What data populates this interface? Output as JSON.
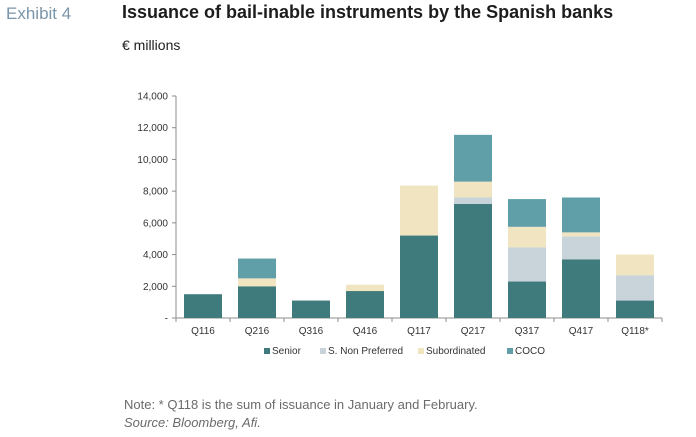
{
  "header": {
    "exhibit": "Exhibit 4",
    "title": "Issuance of bail-inable instruments by the Spanish banks",
    "unit": "€ millions"
  },
  "footer": {
    "note": "Note: * Q118 is the sum of issuance in January and February.",
    "source": "Source: Bloomberg, Afi."
  },
  "chart_data": {
    "type": "bar",
    "stacked": true,
    "title": "Issuance of bail-inable instruments by the Spanish banks",
    "ylabel": "€ millions",
    "ylim": [
      0,
      14000
    ],
    "yticks": [
      0,
      2000,
      4000,
      6000,
      8000,
      10000,
      12000,
      14000
    ],
    "ytick_labels": [
      "-",
      "2,000",
      "4,000",
      "6,000",
      "8,000",
      "10,000",
      "12,000",
      "14,000"
    ],
    "categories": [
      "Q116",
      "Q216",
      "Q316",
      "Q416",
      "Q117",
      "Q217",
      "Q317",
      "Q417",
      "Q118*"
    ],
    "legend_position": "bottom",
    "grid": false,
    "series": [
      {
        "name": "Senior",
        "color": "#3f7a7d",
        "values": [
          1500,
          2000,
          1100,
          1700,
          5200,
          7200,
          2300,
          3700,
          1100
        ]
      },
      {
        "name": "S. Non Preferred",
        "color": "#c8d3da",
        "values": [
          0,
          0,
          0,
          0,
          0,
          400,
          2150,
          1450,
          1600
        ]
      },
      {
        "name": "Subordinated",
        "color": "#f1e4c0",
        "values": [
          0,
          500,
          0,
          400,
          3150,
          1000,
          1300,
          250,
          1300
        ]
      },
      {
        "name": "COCO",
        "color": "#619fa8",
        "values": [
          0,
          1250,
          0,
          0,
          0,
          2950,
          1750,
          2200,
          0
        ]
      }
    ]
  }
}
